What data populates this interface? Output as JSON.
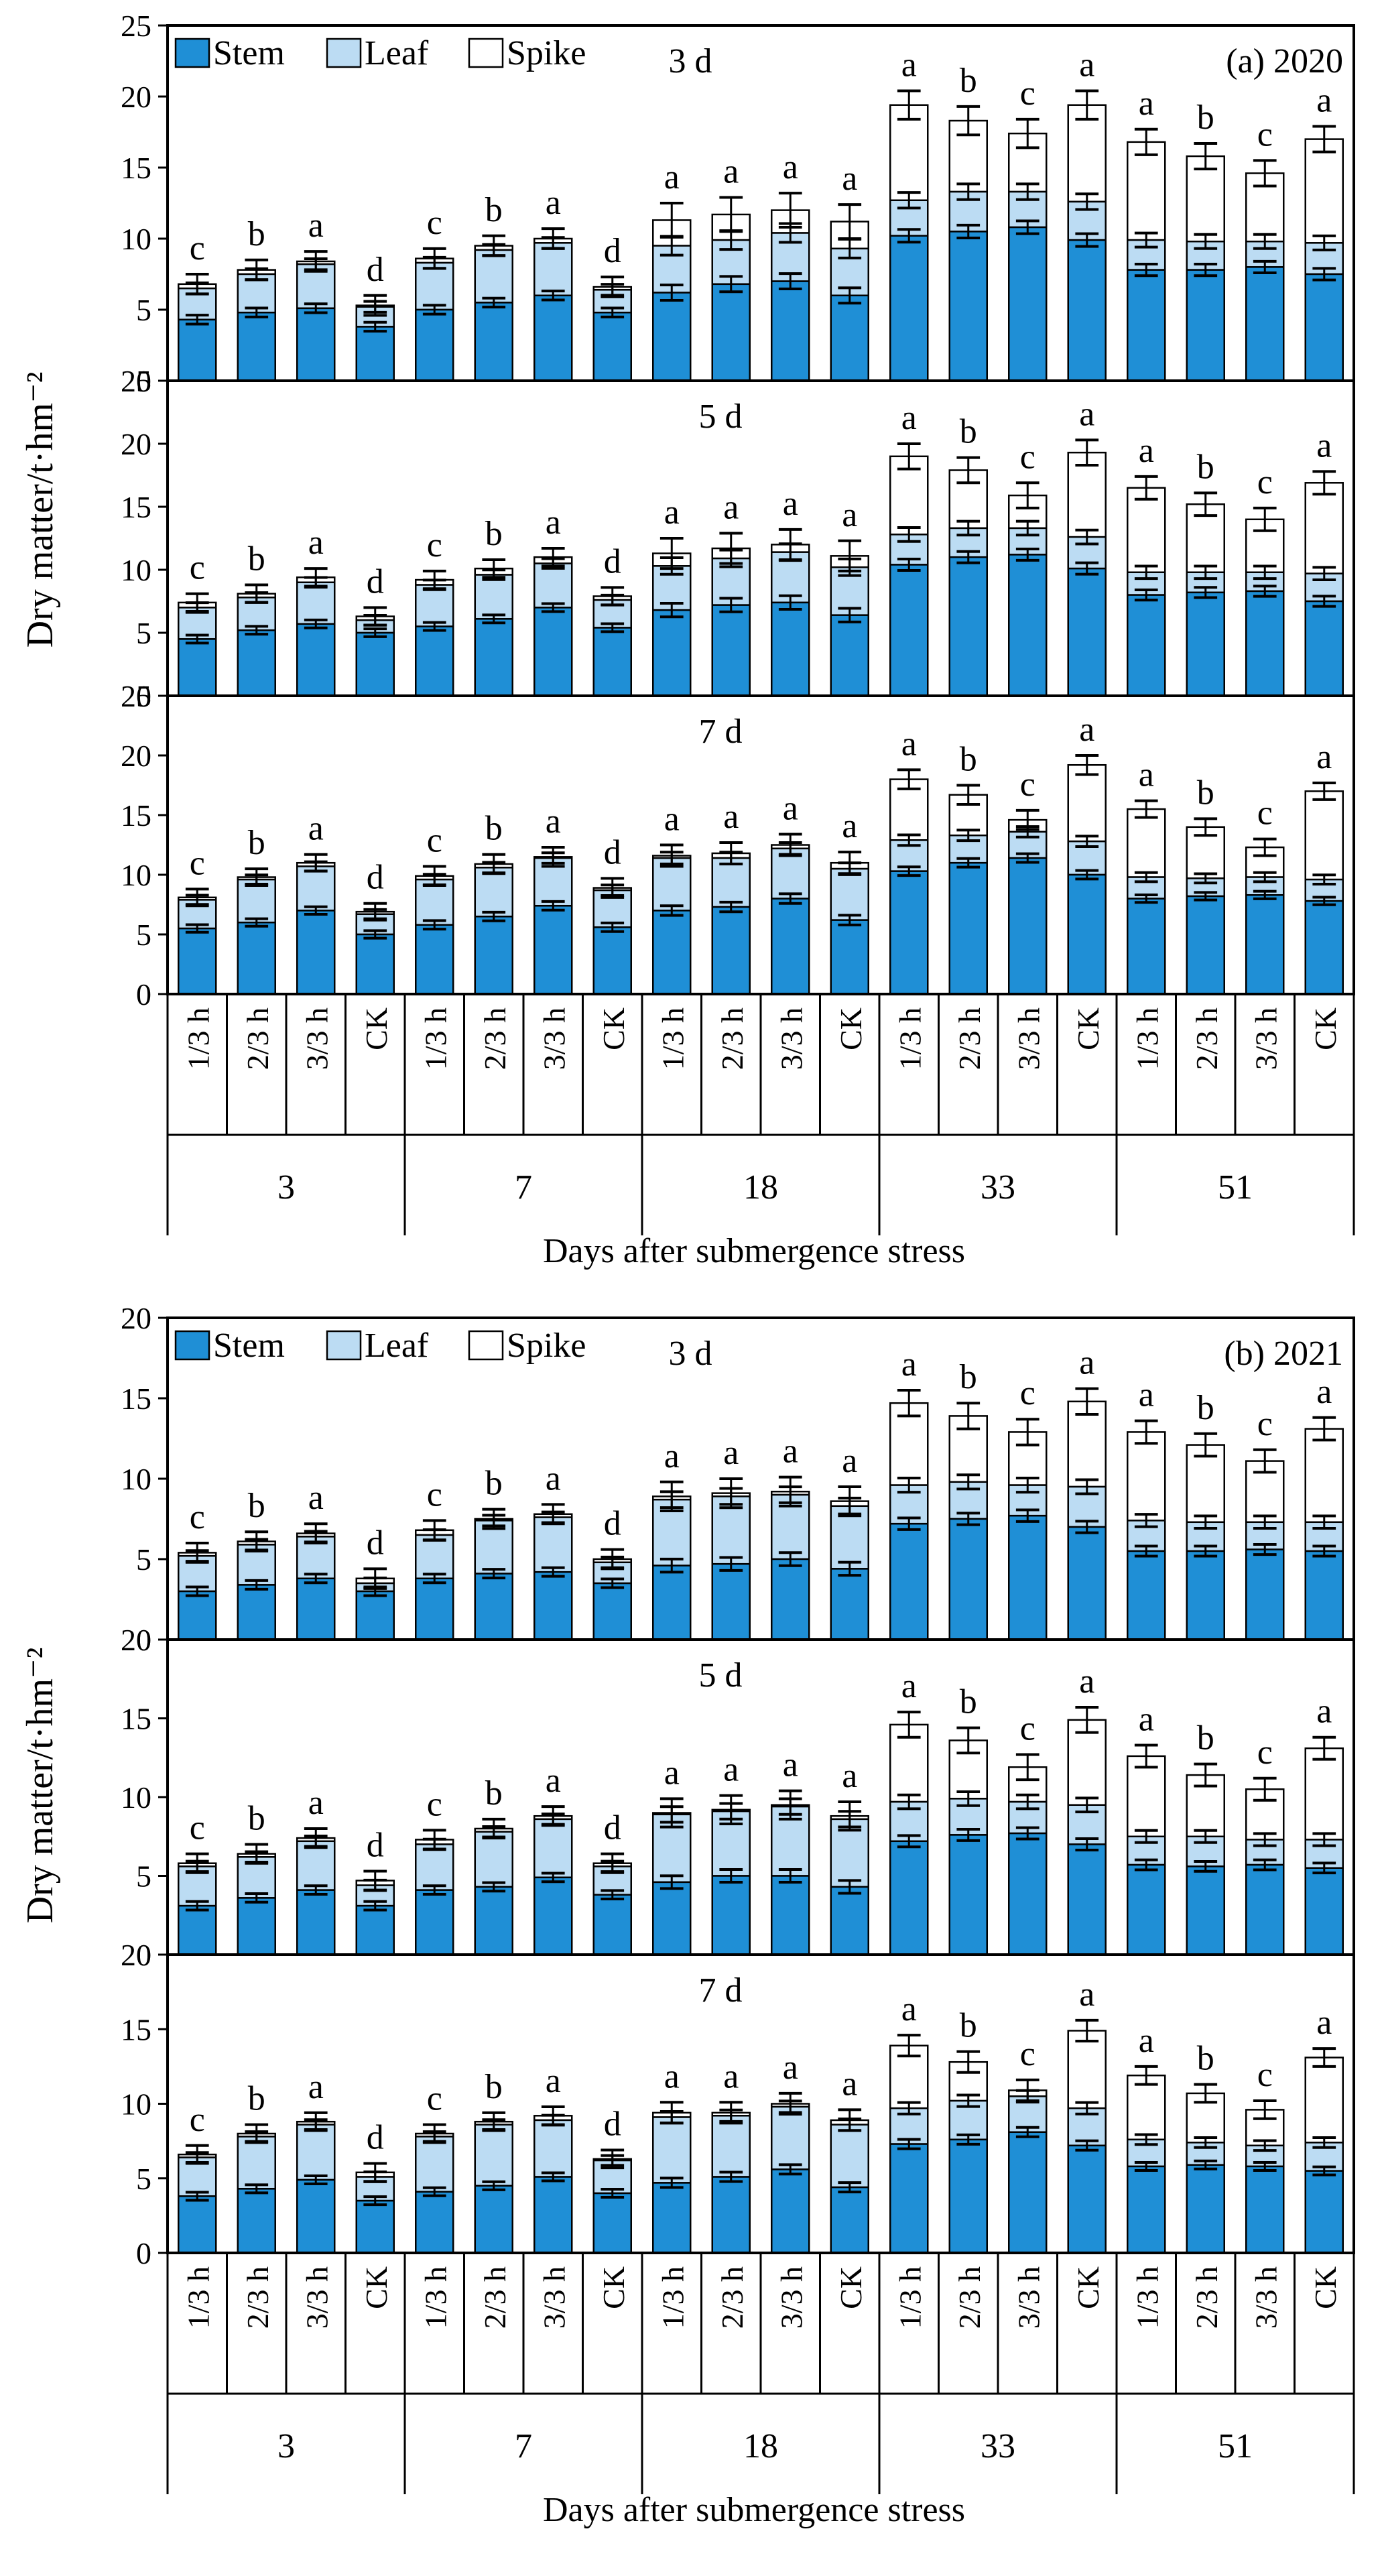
{
  "colors": {
    "stem": "#1f8fd6",
    "leaf": "#bcdcf3",
    "spike": "#ffffff",
    "axis": "#000000"
  },
  "x_axis": {
    "treatments": [
      "1/3 h",
      "2/3 h",
      "3/3 h",
      "CK"
    ],
    "groups": [
      "3",
      "7",
      "18",
      "33",
      "51"
    ],
    "title": "Days after submergence stress"
  },
  "legend": {
    "items": [
      "Stem",
      "Leaf",
      "Spike"
    ]
  },
  "chart_data": [
    {
      "type": "bar",
      "stacked": true,
      "title": "(a) 2020",
      "xlabel": "Days after submergence stress",
      "ylabel": "Dry matter/t·hm⁻²",
      "ylim": [
        0,
        25
      ],
      "yticks": [
        "0",
        "5",
        "10",
        "15",
        "20",
        "25"
      ],
      "legend": [
        "Stem",
        "Leaf",
        "Spike"
      ],
      "panels": [
        {
          "label": "3 d",
          "stem": [
            4.3,
            4.8,
            5.1,
            3.8,
            5.0,
            5.5,
            6.0,
            4.8,
            6.2,
            6.8,
            7.0,
            6.0,
            10.2,
            10.5,
            10.8,
            9.9,
            7.8,
            7.8,
            8.0,
            7.5
          ],
          "leaf": [
            6.5,
            7.5,
            8.2,
            5.2,
            8.3,
            9.2,
            9.7,
            6.4,
            9.5,
            9.9,
            10.4,
            9.3,
            12.7,
            13.3,
            13.3,
            12.6,
            9.9,
            9.8,
            9.8,
            9.7
          ],
          "spike": [
            6.8,
            7.8,
            8.4,
            5.3,
            8.6,
            9.5,
            10.0,
            6.6,
            11.3,
            11.7,
            12.0,
            11.2,
            19.4,
            18.3,
            17.4,
            19.4,
            16.8,
            15.8,
            14.6,
            17.0
          ],
          "err": [
            0.7,
            0.7,
            0.7,
            0.7,
            0.7,
            0.7,
            0.7,
            0.7,
            1.2,
            1.2,
            1.2,
            1.2,
            1.0,
            1.0,
            1.0,
            1.0,
            0.9,
            0.9,
            0.9,
            0.9
          ],
          "sig": [
            "c",
            "b",
            "a",
            "d",
            "c",
            "b",
            "a",
            "d",
            "a",
            "a",
            "a",
            "a",
            "a",
            "b",
            "c",
            "a",
            "a",
            "b",
            "c",
            "a"
          ]
        },
        {
          "label": "5 d",
          "stem": [
            4.5,
            5.2,
            5.7,
            5.0,
            5.5,
            6.1,
            7.0,
            5.4,
            6.8,
            7.2,
            7.4,
            6.4,
            10.4,
            11.0,
            11.2,
            10.1,
            8.0,
            8.2,
            8.3,
            7.5
          ],
          "leaf": [
            7.0,
            7.8,
            9.0,
            6.0,
            8.8,
            9.6,
            10.5,
            7.6,
            10.3,
            10.9,
            11.4,
            10.2,
            12.8,
            13.3,
            13.3,
            12.6,
            9.8,
            9.8,
            9.8,
            9.7
          ],
          "spike": [
            7.4,
            8.1,
            9.4,
            6.3,
            9.2,
            10.1,
            11.0,
            7.9,
            11.3,
            11.7,
            12.0,
            11.1,
            19.0,
            17.9,
            15.9,
            19.3,
            16.5,
            15.2,
            14.0,
            16.9
          ],
          "err": [
            0.7,
            0.7,
            0.7,
            0.7,
            0.7,
            0.7,
            0.7,
            0.7,
            1.2,
            1.2,
            1.2,
            1.2,
            1.0,
            1.0,
            1.0,
            1.0,
            0.9,
            0.9,
            0.9,
            0.9
          ],
          "sig": [
            "c",
            "b",
            "a",
            "d",
            "c",
            "b",
            "a",
            "d",
            "a",
            "a",
            "a",
            "a",
            "a",
            "b",
            "c",
            "a",
            "a",
            "b",
            "c",
            "a"
          ]
        },
        {
          "label": "7 d",
          "stem": [
            5.5,
            6.0,
            7.0,
            5.0,
            5.8,
            6.5,
            7.4,
            5.6,
            7.0,
            7.3,
            8.0,
            6.2,
            10.3,
            11.0,
            11.4,
            10.0,
            8.0,
            8.2,
            8.3,
            7.8
          ],
          "leaf": [
            7.9,
            9.6,
            10.7,
            6.7,
            9.6,
            10.6,
            11.4,
            8.7,
            11.4,
            11.4,
            12.2,
            10.5,
            12.9,
            13.3,
            13.6,
            12.8,
            9.8,
            9.7,
            9.8,
            9.6
          ],
          "spike": [
            8.1,
            9.8,
            11.0,
            6.9,
            9.9,
            10.9,
            11.5,
            8.9,
            11.6,
            11.8,
            12.5,
            11.0,
            18.0,
            16.7,
            14.6,
            19.2,
            15.5,
            14.0,
            12.3,
            17.0
          ],
          "err": [
            0.7,
            0.7,
            0.7,
            0.7,
            0.8,
            0.8,
            0.8,
            0.8,
            0.9,
            0.9,
            0.9,
            0.9,
            0.8,
            0.8,
            0.8,
            0.8,
            0.7,
            0.7,
            0.7,
            0.7
          ],
          "sig": [
            "c",
            "b",
            "a",
            "d",
            "c",
            "b",
            "a",
            "d",
            "a",
            "a",
            "a",
            "a",
            "a",
            "b",
            "c",
            "a",
            "a",
            "b",
            "c",
            "a"
          ]
        }
      ]
    },
    {
      "type": "bar",
      "stacked": true,
      "title": "(b) 2021",
      "xlabel": "Days after submergence stress",
      "ylabel": "Dry matter/t·hm⁻²",
      "ylim": [
        0,
        20
      ],
      "yticks": [
        "0",
        "5",
        "10",
        "15",
        "20"
      ],
      "legend": [
        "Stem",
        "Leaf",
        "Spike"
      ],
      "panels": [
        {
          "label": "3 d",
          "stem": [
            3.0,
            3.4,
            3.8,
            3.0,
            3.8,
            4.1,
            4.2,
            3.5,
            4.6,
            4.7,
            5.0,
            4.4,
            7.2,
            7.5,
            7.7,
            7.0,
            5.5,
            5.5,
            5.6,
            5.5
          ],
          "leaf": [
            5.2,
            5.9,
            6.4,
            3.5,
            6.5,
            7.4,
            7.6,
            4.8,
            8.7,
            8.9,
            9.0,
            8.3,
            9.6,
            9.8,
            9.6,
            9.5,
            7.4,
            7.3,
            7.3,
            7.3
          ],
          "spike": [
            5.4,
            6.1,
            6.6,
            3.8,
            6.8,
            7.5,
            7.8,
            5.0,
            8.9,
            9.1,
            9.2,
            8.6,
            14.7,
            13.9,
            12.9,
            14.8,
            12.9,
            12.1,
            11.1,
            13.1
          ],
          "err": [
            0.6,
            0.6,
            0.6,
            0.6,
            0.6,
            0.6,
            0.6,
            0.6,
            0.9,
            0.9,
            0.9,
            0.9,
            0.8,
            0.8,
            0.8,
            0.8,
            0.7,
            0.7,
            0.7,
            0.7
          ],
          "sig": [
            "c",
            "b",
            "a",
            "d",
            "c",
            "b",
            "a",
            "d",
            "a",
            "a",
            "a",
            "a",
            "a",
            "b",
            "c",
            "a",
            "a",
            "b",
            "c",
            "a"
          ]
        },
        {
          "label": "5 d",
          "stem": [
            3.1,
            3.6,
            4.1,
            3.1,
            4.1,
            4.3,
            4.9,
            3.8,
            4.6,
            5.0,
            5.0,
            4.3,
            7.2,
            7.6,
            7.7,
            7.0,
            5.7,
            5.6,
            5.7,
            5.5
          ],
          "leaf": [
            5.6,
            6.2,
            7.2,
            4.4,
            7.0,
            7.8,
            8.6,
            5.6,
            8.9,
            9.1,
            9.4,
            8.6,
            9.7,
            9.9,
            9.7,
            9.5,
            7.5,
            7.5,
            7.3,
            7.3
          ],
          "spike": [
            5.8,
            6.4,
            7.4,
            4.7,
            7.3,
            8.0,
            8.8,
            5.8,
            9.0,
            9.2,
            9.5,
            8.8,
            14.6,
            13.6,
            11.9,
            14.9,
            12.6,
            11.4,
            10.5,
            13.1
          ],
          "err": [
            0.6,
            0.6,
            0.6,
            0.6,
            0.6,
            0.6,
            0.6,
            0.6,
            0.9,
            0.9,
            0.9,
            0.9,
            0.8,
            0.8,
            0.8,
            0.8,
            0.7,
            0.7,
            0.7,
            0.7
          ],
          "sig": [
            "c",
            "b",
            "a",
            "d",
            "c",
            "b",
            "a",
            "d",
            "a",
            "a",
            "a",
            "a",
            "a",
            "b",
            "c",
            "a",
            "a",
            "b",
            "c",
            "a"
          ]
        },
        {
          "label": "7 d",
          "stem": [
            3.8,
            4.3,
            4.9,
            3.5,
            4.1,
            4.5,
            5.1,
            4.0,
            4.7,
            5.1,
            5.6,
            4.4,
            7.3,
            7.6,
            8.1,
            7.2,
            5.8,
            5.9,
            5.8,
            5.5
          ],
          "leaf": [
            6.4,
            7.8,
            8.6,
            5.1,
            7.8,
            8.6,
            8.9,
            6.2,
            9.1,
            9.2,
            9.8,
            8.6,
            9.7,
            10.2,
            10.5,
            9.7,
            7.6,
            7.4,
            7.2,
            7.4
          ],
          "spike": [
            6.6,
            8.0,
            8.8,
            5.4,
            8.0,
            8.8,
            9.2,
            6.3,
            9.4,
            9.4,
            10.0,
            8.9,
            13.9,
            12.8,
            10.9,
            14.9,
            11.9,
            10.7,
            9.6,
            13.1
          ],
          "err": [
            0.6,
            0.6,
            0.6,
            0.6,
            0.6,
            0.6,
            0.6,
            0.6,
            0.7,
            0.7,
            0.7,
            0.7,
            0.7,
            0.7,
            0.7,
            0.7,
            0.6,
            0.6,
            0.6,
            0.6
          ],
          "sig": [
            "c",
            "b",
            "a",
            "d",
            "c",
            "b",
            "a",
            "d",
            "a",
            "a",
            "a",
            "a",
            "a",
            "b",
            "c",
            "a",
            "a",
            "b",
            "c",
            "a"
          ]
        }
      ]
    }
  ]
}
